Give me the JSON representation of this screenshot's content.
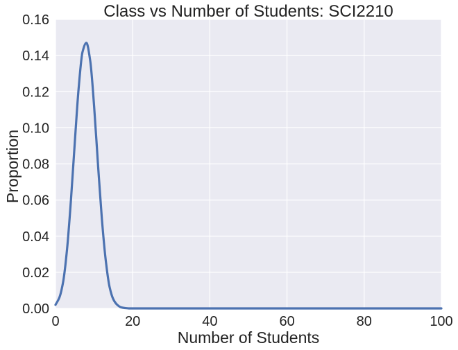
{
  "chart_data": {
    "type": "line",
    "title": "Class vs Number of Students: SCI2210",
    "xlabel": "Number of Students",
    "ylabel": "Proportion",
    "xlim": [
      0,
      100
    ],
    "ylim": [
      0,
      0.16
    ],
    "xticks": [
      0,
      20,
      40,
      60,
      80,
      100
    ],
    "xtick_labels": [
      "0",
      "20",
      "40",
      "60",
      "80",
      "100"
    ],
    "yticks": [
      0,
      0.02,
      0.04,
      0.06,
      0.08,
      0.1,
      0.12,
      0.14,
      0.16
    ],
    "ytick_labels": [
      "0.00",
      "0.02",
      "0.04",
      "0.06",
      "0.08",
      "0.10",
      "0.12",
      "0.14",
      "0.16"
    ],
    "grid": true,
    "legend": "none",
    "background_color": "#eaeaf2",
    "grid_color": "#ffffff",
    "series": [
      {
        "color": "#4c72b0",
        "x": [
          0,
          1,
          2,
          3,
          4,
          5,
          6,
          7,
          8,
          9,
          10,
          11,
          12,
          13,
          14,
          15,
          16,
          17,
          18,
          19,
          20,
          25,
          30,
          40,
          50,
          60,
          70,
          80,
          90,
          100
        ],
        "y": [
          0.002,
          0.006,
          0.015,
          0.033,
          0.06,
          0.092,
          0.122,
          0.142,
          0.147,
          0.137,
          0.112,
          0.08,
          0.05,
          0.027,
          0.012,
          0.005,
          0.002,
          0.0006,
          0.0002,
          0,
          0,
          0,
          0,
          0,
          0,
          0,
          0,
          0,
          0,
          0
        ]
      }
    ]
  }
}
